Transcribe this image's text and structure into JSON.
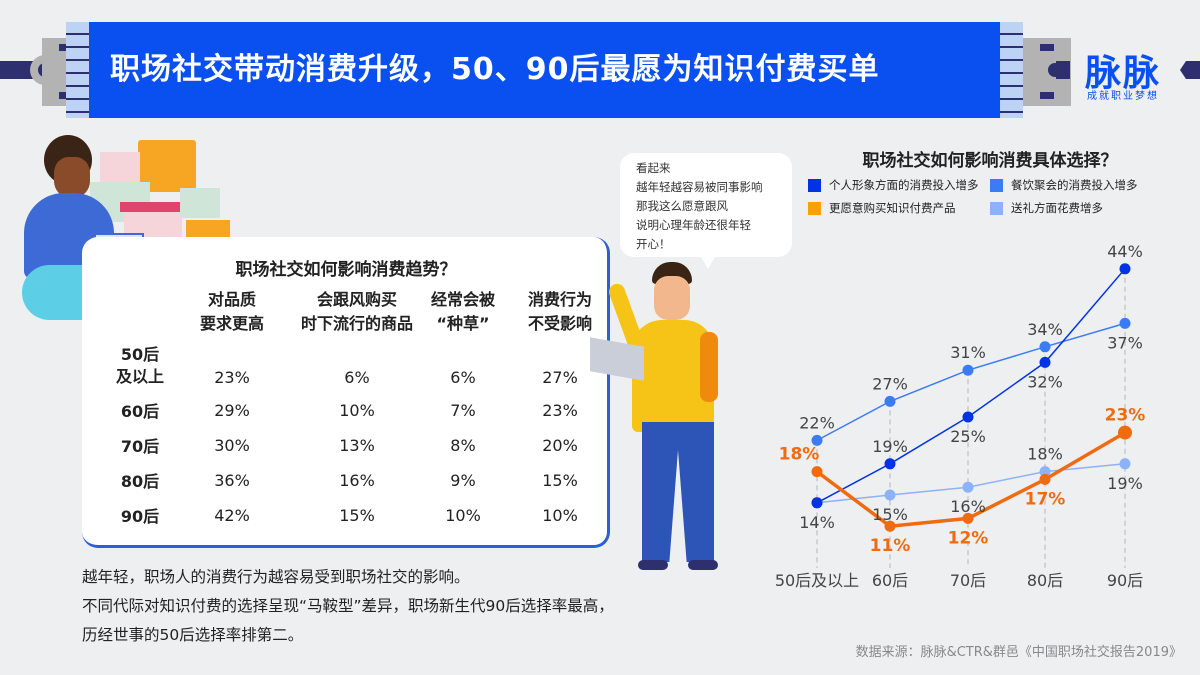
{
  "header": {
    "title": "职场社交带动消费升级，50、90后最愿为知识付费买单"
  },
  "logo": {
    "name": "脉脉",
    "slogan": "成就职业梦想"
  },
  "table": {
    "title": "职场社交如何影响消费趋势？",
    "columns": [
      [
        "对品质",
        "要求更高"
      ],
      [
        "会跟风购买",
        "时下流行的商品"
      ],
      [
        "经常会被",
        "“种草”"
      ],
      [
        "消费行为",
        "不受影响"
      ]
    ],
    "rows": [
      {
        "label": [
          "50后",
          "及以上"
        ],
        "values": [
          "23%",
          "6%",
          "6%",
          "27%"
        ]
      },
      {
        "label": [
          "60后"
        ],
        "values": [
          "29%",
          "10%",
          "7%",
          "23%"
        ]
      },
      {
        "label": [
          "70后"
        ],
        "values": [
          "30%",
          "13%",
          "8%",
          "20%"
        ]
      },
      {
        "label": [
          "80后"
        ],
        "values": [
          "36%",
          "16%",
          "9%",
          "15%"
        ]
      },
      {
        "label": [
          "90后"
        ],
        "values": [
          "42%",
          "15%",
          "10%",
          "10%"
        ]
      }
    ]
  },
  "notes": [
    "越年轻，职场人的消费行为越容易受到职场社交的影响。",
    "不同代际对知识付费的选择呈现“马鞍型”差异，职场新生代90后选择率最高，",
    "历经世事的50后选择率排第二。"
  ],
  "bubble": [
    "看起来",
    "越年轻越容易被同事影响",
    "那我这么愿意跟风",
    "说明心理年龄还很年轻",
    "开心！"
  ],
  "source": "数据来源：脉脉&CTR&群邑《中国职场社交报告2019》",
  "chart_data": {
    "type": "line",
    "title": "职场社交如何影响消费具体选择？",
    "categories": [
      "50后及以上",
      "60后",
      "70后",
      "80后",
      "90后"
    ],
    "ylim": [
      0,
      50
    ],
    "grid": false,
    "legend_position": "top",
    "series": [
      {
        "name": "个人形象方面的消费投入增多",
        "color": "#0033e6",
        "values": [
          14,
          19,
          25,
          32,
          44
        ],
        "label_pos": [
          "below",
          "above",
          "below",
          "below",
          "above"
        ],
        "bold": false
      },
      {
        "name": "餐饮聚会的消费投入增多",
        "color": "#3b7cf5",
        "values": [
          22,
          27,
          31,
          34,
          37
        ],
        "label_pos": [
          "above",
          "above",
          "above",
          "above",
          "below"
        ],
        "bold": false
      },
      {
        "name": "更愿意购买知识付费产品",
        "color": "#f06a0f",
        "legend_color": "#ff9f0a",
        "values": [
          18,
          11,
          12,
          17,
          23
        ],
        "label_pos": [
          "above",
          "below",
          "below",
          "below",
          "above"
        ],
        "bold": true
      },
      {
        "name": "送礼方面花费增多",
        "color": "#8cb2fb",
        "values": [
          14,
          15,
          16,
          18,
          19
        ],
        "label_pos": [
          "none",
          "below",
          "below",
          "above",
          "below"
        ],
        "bold": false
      }
    ]
  }
}
